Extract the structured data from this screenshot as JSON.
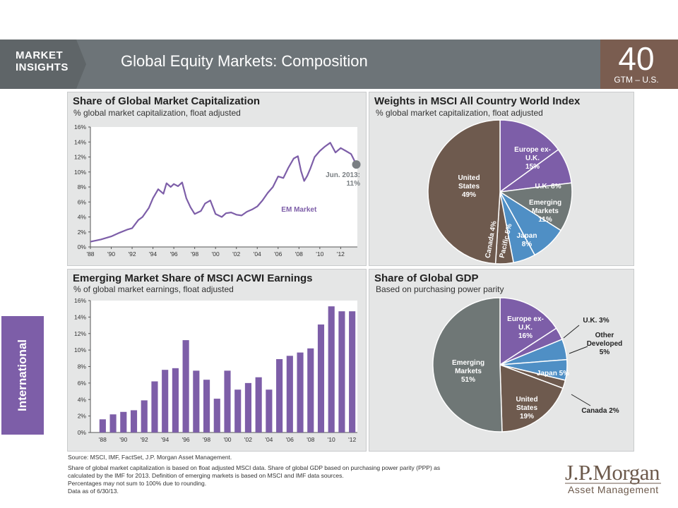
{
  "header": {
    "brand": "MARKET INSIGHTS",
    "title": "Global Equity Markets: Composition",
    "page_number": "40",
    "page_label": "GTM – U.S."
  },
  "side_tab": "International",
  "colors": {
    "header_gray": "#6d7478",
    "accent_brown": "#7a5d50",
    "purple": "#7d5ea8",
    "blue": "#4f8fc5",
    "gray": "#6f7776",
    "brown": "#6e5a4e"
  },
  "footnote": {
    "source": "Source: MSCI, IMF, FactSet, J.P. Morgan Asset Management.",
    "lines": [
      "Share of global market capitalization is based on float adjusted MSCI data. Share of global GDP based on purchasing power parity (PPP) as",
      "calculated by the IMF for 2013. Definition of emerging markets is based on MSCI and IMF data sources.",
      "Percentages may not sum to 100% due to rounding.",
      "Data as of 6/30/13."
    ]
  },
  "logo": {
    "line1": "J.P.Morgan",
    "line2": "Asset Management"
  },
  "chart_data": [
    {
      "type": "line",
      "title": "Share of Global Market Capitalization",
      "subtitle": "% global market capitalization, float adjusted",
      "series_label": "EM Market",
      "annotation": "Jun. 2013: 11%",
      "x_ticks": [
        "'88",
        "'90",
        "'92",
        "'94",
        "'96",
        "'98",
        "'00",
        "'02",
        "'04",
        "'06",
        "'08",
        "'10",
        "'12"
      ],
      "y_ticks": [
        "0%",
        "2%",
        "4%",
        "6%",
        "8%",
        "10%",
        "12%",
        "14%",
        "16%"
      ],
      "ylim": [
        0,
        16
      ],
      "xlim": [
        1988,
        2013.6
      ],
      "x": [
        1988.0,
        1989.0,
        1990.0,
        1990.8,
        1991.5,
        1992.0,
        1992.6,
        1993.0,
        1993.6,
        1994.0,
        1994.5,
        1995.0,
        1995.3,
        1995.7,
        1996.0,
        1996.4,
        1996.8,
        1997.2,
        1997.6,
        1998.0,
        1998.6,
        1999.0,
        1999.5,
        2000.0,
        2000.6,
        2001.0,
        2001.5,
        2002.0,
        2002.5,
        2003.0,
        2003.5,
        2004.0,
        2004.5,
        2005.0,
        2005.5,
        2006.0,
        2006.5,
        2007.0,
        2007.5,
        2007.9,
        2008.2,
        2008.5,
        2008.8,
        2009.1,
        2009.5,
        2010.0,
        2010.5,
        2011.0,
        2011.5,
        2012.0,
        2012.5,
        2013.0,
        2013.5
      ],
      "y": [
        0.7,
        1.0,
        1.4,
        1.9,
        2.3,
        2.5,
        3.6,
        4.0,
        5.2,
        6.5,
        7.7,
        7.1,
        8.5,
        8.0,
        8.4,
        8.1,
        8.6,
        6.5,
        5.3,
        4.4,
        4.8,
        5.8,
        6.2,
        4.4,
        4.0,
        4.5,
        4.6,
        4.3,
        4.2,
        4.7,
        5.0,
        5.4,
        6.2,
        7.2,
        8.0,
        9.4,
        9.2,
        10.6,
        11.8,
        12.1,
        10.1,
        8.8,
        9.5,
        10.5,
        12.0,
        12.8,
        13.4,
        13.9,
        12.6,
        13.2,
        12.8,
        12.4,
        11.0
      ]
    },
    {
      "type": "pie",
      "title": "Weights in MSCI All Country World Index",
      "subtitle": "% global market capitalization, float adjusted",
      "slices": [
        {
          "label": "Europe ex-U.K.",
          "value": 15,
          "color": "#7d5ea8"
        },
        {
          "label": "U.K.",
          "value": 8,
          "color": "#7d5ea8"
        },
        {
          "label": "Emerging Markets",
          "value": 11,
          "color": "#6f7776"
        },
        {
          "label": "Japan",
          "value": 8,
          "color": "#4f8fc5"
        },
        {
          "label": "Pacific",
          "value": 5,
          "color": "#4f8fc5"
        },
        {
          "label": "Canada",
          "value": 4,
          "color": "#6e5a4e"
        },
        {
          "label": "United States",
          "value": 49,
          "color": "#6e5a4e"
        }
      ],
      "labels": {
        "europe": [
          "Europe ex-",
          "U.K.",
          "15%"
        ],
        "uk": "U.K. 8%",
        "em": [
          "Emerging",
          "Markets",
          "11%"
        ],
        "japan": [
          "Japan",
          "8%"
        ],
        "pacific": "Pacific 5%",
        "canada": "Canada 4%",
        "us": [
          "United",
          "States",
          "49%"
        ]
      }
    },
    {
      "type": "bar",
      "title": "Emerging Market Share of MSCI ACWI Earnings",
      "subtitle": "% of global market earnings, float adjusted",
      "x_ticks": [
        "'88",
        "'90",
        "'92",
        "'94",
        "'96",
        "'98",
        "'00",
        "'02",
        "'04",
        "'06",
        "'08",
        "'10",
        "'12"
      ],
      "y_ticks": [
        "0%",
        "2%",
        "4%",
        "6%",
        "8%",
        "10%",
        "12%",
        "14%",
        "16%"
      ],
      "ylim": [
        0,
        16
      ],
      "categories": [
        1988,
        1989,
        1990,
        1991,
        1992,
        1993,
        1994,
        1995,
        1996,
        1997,
        1998,
        1999,
        2000,
        2001,
        2002,
        2003,
        2004,
        2005,
        2006,
        2007,
        2008,
        2009,
        2010,
        2011,
        2012
      ],
      "values": [
        1.6,
        2.2,
        2.5,
        2.7,
        3.9,
        6.2,
        7.6,
        7.8,
        11.2,
        7.5,
        6.4,
        4.1,
        7.5,
        5.2,
        6.0,
        6.7,
        5.2,
        8.9,
        9.3,
        9.7,
        10.2,
        13.1,
        15.3,
        14.7,
        14.7
      ]
    },
    {
      "type": "pie",
      "title": "Share of Global GDP",
      "subtitle": "Based on purchasing power parity",
      "slices": [
        {
          "label": "Europe ex-U.K.",
          "value": 16,
          "color": "#7d5ea8"
        },
        {
          "label": "U.K.",
          "value": 3,
          "color": "#7d5ea8"
        },
        {
          "label": "Other Developed",
          "value": 5,
          "color": "#4f8fc5"
        },
        {
          "label": "Japan",
          "value": 5,
          "color": "#4f8fc5"
        },
        {
          "label": "Canada",
          "value": 2,
          "color": "#6e5a4e"
        },
        {
          "label": "United States",
          "value": 19,
          "color": "#6e5a4e"
        },
        {
          "label": "Emerging Markets",
          "value": 51,
          "color": "#6f7776"
        }
      ],
      "labels": {
        "europe": [
          "Europe ex-",
          "U.K.",
          "16%"
        ],
        "uk": "U.K. 3%",
        "other": [
          "Other",
          "Developed",
          "5%"
        ],
        "japan": "Japan 5%",
        "canada": "Canada 2%",
        "us": [
          "United",
          "States",
          "19%"
        ],
        "em": [
          "Emerging",
          "Markets",
          "51%"
        ]
      }
    }
  ]
}
